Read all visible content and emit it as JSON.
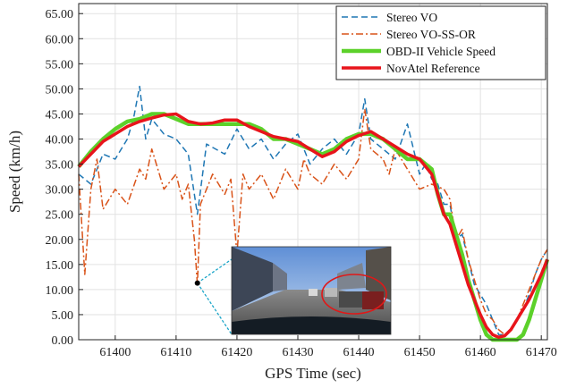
{
  "chart_data": {
    "type": "line",
    "title": "",
    "xlabel": "GPS Time (sec)",
    "ylabel": "Speed (km/h)",
    "xlim": [
      61394,
      61471
    ],
    "ylim": [
      0,
      67
    ],
    "x_ticks": [
      "61400",
      "61410",
      "61420",
      "61430",
      "61440",
      "61450",
      "61460",
      "61470"
    ],
    "y_ticks": [
      "0.00",
      "5.00",
      "10.00",
      "15.00",
      "20.00",
      "25.00",
      "30.00",
      "35.00",
      "40.00",
      "45.00",
      "50.00",
      "55.00",
      "60.00",
      "65.00"
    ],
    "grid": true,
    "legend_position": "top-right",
    "colors": {
      "stereo_vo": "#1f77b4",
      "stereo_vo_ss_or": "#d95319",
      "obd": "#5cd12a",
      "novatel": "#e8141b",
      "callout_line": "#1aa5c8"
    },
    "series": [
      {
        "name": "Stereo VO",
        "style": "dashed",
        "x": [
          61394,
          61396,
          61398,
          61400,
          61402,
          61403,
          61404,
          61405,
          61406,
          61408,
          61410,
          61412,
          61413.5,
          61415,
          61418,
          61420,
          61422,
          61424,
          61426,
          61428,
          61430,
          61432,
          61434,
          61436,
          61438,
          61440,
          61441,
          61442,
          61444,
          61446,
          61448,
          61450,
          61451,
          61452,
          61453,
          61454,
          61455,
          61456,
          61457,
          61458,
          61459,
          61460,
          61461,
          61462,
          61463,
          61464,
          61465,
          61466,
          61467,
          61468,
          61469,
          61470,
          61471
        ],
        "y": [
          33,
          31,
          37,
          36,
          40,
          44,
          50.5,
          40,
          44,
          41,
          40,
          37,
          25,
          39,
          37,
          42,
          38,
          40,
          36,
          39,
          41,
          35,
          38,
          40,
          37,
          41,
          48,
          40,
          38,
          36,
          43,
          33,
          35,
          32,
          31,
          27,
          27,
          20,
          21,
          16,
          11,
          9,
          7,
          4,
          1,
          1,
          2,
          4,
          6,
          9,
          13,
          16,
          18
        ]
      },
      {
        "name": "Stereo VO-SS-OR",
        "style": "dashdot",
        "x": [
          61394,
          61395,
          61396,
          61397,
          61398,
          61400,
          61402,
          61404,
          61405,
          61406,
          61408,
          61410,
          61411,
          61412,
          61413,
          61413.5,
          61414,
          61416,
          61418,
          61419,
          61420,
          61421,
          61422,
          61424,
          61426,
          61428,
          61430,
          61431,
          61432,
          61434,
          61436,
          61438,
          61440,
          61441,
          61442,
          61444,
          61445,
          61446,
          61448,
          61450,
          61452,
          61454,
          61455,
          61456,
          61457,
          61458,
          61459,
          61460,
          61461,
          61462,
          61463,
          61464,
          61465,
          61466,
          61467,
          61468,
          61469,
          61470,
          61471
        ],
        "y": [
          33,
          13,
          30,
          36,
          26,
          30,
          27,
          34,
          32,
          38,
          30,
          33,
          28,
          31,
          20,
          11,
          27,
          33,
          29,
          32,
          17,
          33,
          30,
          33,
          28,
          34,
          30,
          36,
          33,
          31,
          35,
          32,
          36,
          46,
          38,
          36,
          33,
          38,
          34,
          30,
          31,
          30,
          28,
          20,
          22,
          16,
          12,
          8,
          5,
          4,
          2,
          1,
          2,
          4,
          7,
          10,
          13,
          16,
          18
        ]
      },
      {
        "name": "OBD-II Vehicle Speed",
        "style": "solid",
        "x": [
          61394,
          61396,
          61398,
          61400,
          61402,
          61404,
          61406,
          61408,
          61410,
          61412,
          61414,
          61416,
          61418,
          61420,
          61422,
          61424,
          61426,
          61428,
          61430,
          61432,
          61434,
          61436,
          61438,
          61440,
          61442,
          61444,
          61446,
          61448,
          61450,
          61452,
          61453,
          61454,
          61455,
          61456,
          61457,
          61458,
          61459,
          61460,
          61461,
          61462,
          61463,
          61464,
          61465,
          61466,
          61467,
          61468,
          61469,
          61470,
          61471
        ],
        "y": [
          34.5,
          37.5,
          40,
          42,
          43.5,
          44,
          45,
          45,
          44,
          43,
          43,
          43,
          43,
          43,
          43,
          42,
          40,
          40,
          39,
          38,
          37,
          38,
          40,
          41,
          41,
          40,
          38,
          36,
          36,
          34,
          29,
          25,
          25,
          21,
          17,
          12,
          8,
          4,
          1,
          0,
          0,
          0,
          0,
          0,
          1,
          4,
          8,
          12,
          16
        ]
      },
      {
        "name": "NovAtel Reference",
        "style": "solid",
        "x": [
          61394,
          61396,
          61398,
          61400,
          61402,
          61404,
          61406,
          61408,
          61410,
          61412,
          61414,
          61416,
          61418,
          61420,
          61422,
          61424,
          61426,
          61428,
          61430,
          61432,
          61434,
          61436,
          61438,
          61440,
          61442,
          61444,
          61446,
          61448,
          61450,
          61452,
          61453,
          61454,
          61455,
          61456,
          61457,
          61458,
          61459,
          61460,
          61461,
          61462,
          61463,
          61464,
          61465,
          61466,
          61467,
          61468,
          61469,
          61470,
          61471
        ],
        "y": [
          34.5,
          37,
          39.5,
          41,
          42.5,
          43.5,
          44.2,
          44.8,
          45,
          43.5,
          43,
          43.2,
          43.8,
          43.8,
          42.5,
          41.5,
          40.5,
          40,
          39.5,
          38,
          36.5,
          37.5,
          39.5,
          40.7,
          41.5,
          40,
          38.5,
          37,
          36,
          33,
          29,
          25,
          23,
          19,
          15,
          11,
          8,
          5,
          2.5,
          1,
          0.5,
          0.8,
          2,
          4,
          6,
          8,
          10.5,
          13,
          16
        ]
      }
    ],
    "annotation": {
      "marker_x": 61413.5,
      "marker_y": 11.3,
      "inset_description": "camera frame from vehicle, highlighted region circled in red"
    }
  }
}
